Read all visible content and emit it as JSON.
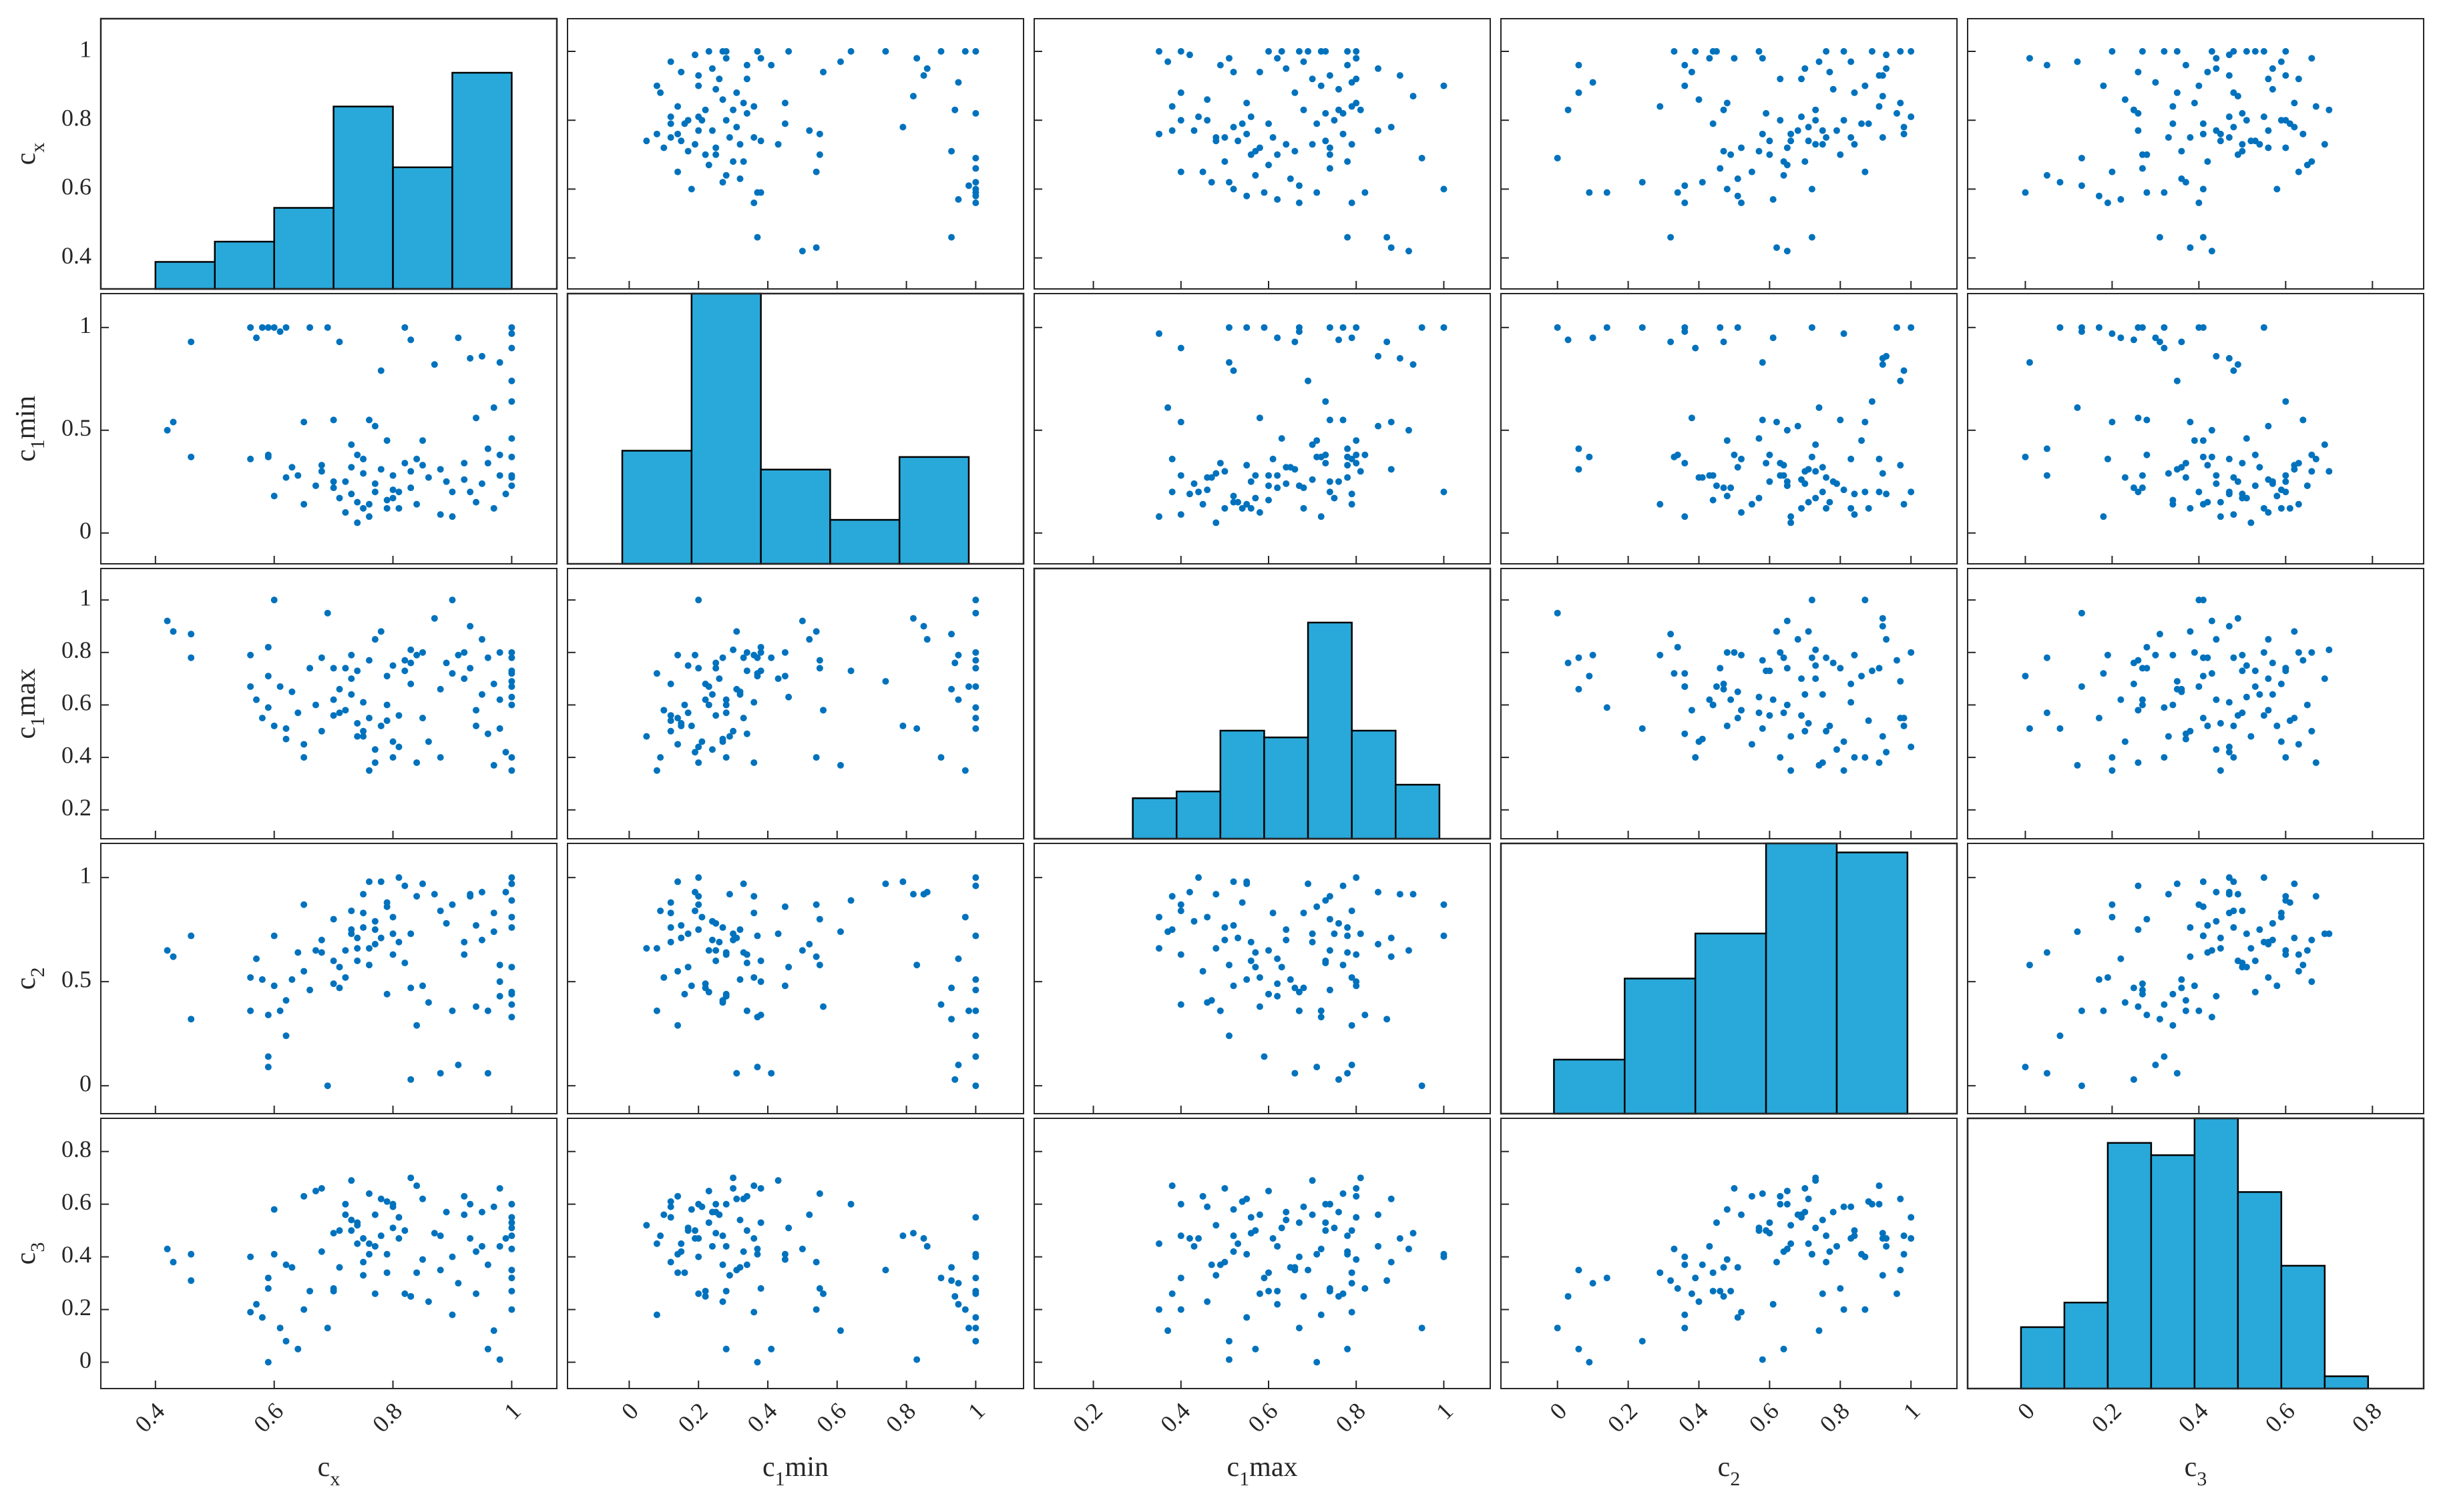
{
  "chart_data": {
    "type": "scatter_matrix",
    "color": "#0072bd",
    "hist_color": "#29a9d9",
    "variables": [
      {
        "label": [
          "c",
          "x"
        ],
        "xlim": [
          0.308,
          1.076
        ],
        "ylim": [
          0.31,
          1.095
        ],
        "xticks": [
          0.4,
          0.6,
          0.8,
          1
        ],
        "yticks": [
          0.4,
          0.6,
          0.8,
          1
        ],
        "values": [
          0.42,
          0.43,
          0.46,
          0.46,
          0.56,
          0.56,
          0.57,
          0.58,
          0.59,
          0.59,
          0.6,
          0.61,
          0.62,
          0.63,
          0.64,
          0.65,
          0.66,
          0.67,
          0.68,
          0.69,
          0.7,
          0.7,
          0.71,
          0.72,
          0.73,
          0.73,
          0.74,
          0.74,
          0.75,
          0.75,
          0.76,
          0.76,
          0.77,
          0.77,
          0.78,
          0.78,
          0.79,
          0.79,
          0.8,
          0.8,
          0.81,
          0.81,
          0.82,
          0.82,
          0.83,
          0.83,
          0.84,
          0.84,
          0.85,
          0.86,
          0.87,
          0.88,
          0.89,
          0.9,
          0.9,
          0.91,
          0.92,
          0.93,
          0.93,
          0.94,
          0.95,
          0.95,
          0.96,
          0.96,
          0.97,
          0.97,
          0.98,
          0.98,
          0.98,
          0.99,
          1.0,
          1.0,
          1.0,
          1.0,
          1.0,
          1.0,
          1.0,
          1.0,
          1.0,
          1.0,
          0.65,
          0.6,
          0.72,
          0.7,
          0.68,
          0.75,
          0.77,
          0.74,
          0.79,
          0.83,
          0.62,
          0.71,
          0.73,
          0.76,
          0.8,
          0.85,
          0.88,
          0.92,
          0.94,
          0.59
        ]
      },
      {
        "label": [
          "c",
          "1",
          "min"
        ],
        "xlim": [
          -0.178,
          1.138
        ],
        "ylim": [
          -0.15,
          1.165
        ],
        "xticks": [
          0,
          0.2,
          0.4,
          0.6,
          0.8,
          1
        ],
        "yticks": [
          0,
          0.5,
          1
        ],
        "values": [
          0.5,
          0.54,
          0.37,
          0.93,
          0.36,
          1.0,
          0.95,
          1.0,
          0.37,
          1.0,
          1.0,
          0.98,
          1.0,
          0.32,
          0.28,
          0.54,
          1.0,
          0.23,
          0.33,
          1.0,
          0.55,
          0.22,
          0.93,
          0.25,
          0.19,
          0.43,
          0.15,
          0.38,
          0.12,
          0.29,
          0.55,
          0.14,
          0.52,
          0.2,
          0.79,
          0.31,
          0.16,
          0.45,
          0.17,
          0.28,
          0.2,
          0.12,
          1.0,
          0.34,
          0.22,
          0.94,
          0.36,
          0.14,
          0.45,
          0.27,
          0.82,
          0.31,
          0.25,
          0.2,
          0.08,
          0.95,
          0.34,
          0.85,
          0.2,
          0.56,
          0.24,
          0.86,
          0.41,
          0.34,
          0.61,
          0.12,
          0.38,
          0.83,
          0.28,
          0.19,
          1.0,
          0.97,
          0.64,
          0.27,
          0.74,
          0.28,
          0.37,
          0.23,
          0.9,
          0.46,
          0.14,
          0.18,
          0.1,
          0.25,
          0.3,
          0.36,
          0.24,
          0.05,
          0.12,
          0.3,
          0.27,
          0.17,
          0.32,
          0.08,
          0.21,
          0.33,
          0.09,
          0.26,
          0.15,
          0.38
        ]
      },
      {
        "label": [
          "c",
          "1",
          "max"
        ],
        "xlim": [
          0.065,
          1.106
        ],
        "ylim": [
          0.09,
          1.12
        ],
        "xticks": [
          0.2,
          0.4,
          0.6,
          0.8,
          1
        ],
        "yticks": [
          0.2,
          0.4,
          0.6,
          0.8,
          1
        ],
        "values": [
          0.92,
          0.88,
          0.78,
          0.87,
          0.79,
          0.67,
          0.62,
          0.55,
          0.71,
          0.59,
          1.0,
          0.67,
          0.51,
          0.65,
          0.57,
          0.4,
          0.74,
          0.6,
          0.78,
          0.95,
          0.74,
          0.62,
          0.66,
          0.74,
          0.79,
          0.7,
          0.53,
          0.73,
          0.5,
          0.48,
          0.77,
          0.55,
          0.85,
          0.38,
          0.52,
          0.88,
          0.6,
          0.71,
          0.75,
          0.4,
          0.44,
          0.56,
          0.77,
          0.73,
          0.68,
          0.76,
          0.38,
          0.79,
          0.8,
          0.46,
          0.93,
          0.66,
          0.76,
          1.0,
          0.72,
          0.79,
          0.8,
          0.9,
          0.74,
          0.58,
          0.64,
          0.85,
          0.78,
          0.49,
          0.37,
          0.68,
          0.8,
          0.51,
          0.62,
          0.42,
          0.8,
          0.35,
          0.73,
          0.78,
          0.69,
          0.6,
          0.72,
          0.67,
          0.4,
          0.63,
          0.45,
          0.52,
          0.58,
          0.56,
          0.5,
          0.61,
          0.43,
          0.48,
          0.54,
          0.81,
          0.47,
          0.57,
          0.64,
          0.35,
          0.46,
          0.55,
          0.4,
          0.7,
          0.52,
          0.82
        ]
      },
      {
        "label": [
          "c",
          "2"
        ],
        "xlim": [
          -0.16,
          1.13
        ],
        "ylim": [
          -0.134,
          1.164
        ],
        "xticks": [
          0,
          0.2,
          0.4,
          0.6,
          0.8,
          1
        ],
        "yticks": [
          0,
          0.5,
          1
        ],
        "values": [
          0.65,
          0.62,
          0.72,
          0.32,
          0.52,
          0.36,
          0.61,
          0.51,
          0.09,
          0.14,
          0.72,
          0.36,
          0.24,
          0.51,
          0.64,
          0.87,
          0.46,
          0.65,
          0.64,
          0.0,
          0.8,
          0.49,
          0.47,
          0.65,
          0.84,
          0.73,
          0.71,
          0.6,
          0.76,
          0.92,
          0.58,
          0.98,
          0.68,
          0.75,
          0.98,
          0.71,
          0.44,
          0.86,
          0.73,
          0.63,
          1.0,
          0.69,
          0.96,
          0.59,
          0.47,
          0.03,
          0.91,
          0.29,
          0.48,
          0.4,
          0.92,
          0.06,
          0.78,
          0.87,
          0.36,
          0.1,
          0.63,
          0.92,
          0.91,
          0.38,
          0.7,
          0.93,
          0.06,
          0.36,
          0.74,
          0.83,
          0.5,
          0.58,
          0.43,
          0.93,
          1.0,
          0.81,
          0.89,
          0.76,
          0.97,
          0.44,
          0.33,
          0.45,
          0.39,
          0.57,
          0.55,
          0.48,
          0.52,
          0.6,
          0.7,
          0.83,
          0.79,
          0.66,
          0.88,
          0.73,
          0.41,
          0.57,
          0.75,
          0.66,
          0.81,
          0.97,
          0.84,
          0.69,
          0.77,
          0.34
        ]
      },
      {
        "label": [
          "c",
          "3"
        ],
        "xlim": [
          -0.133,
          0.918
        ],
        "ylim": [
          -0.1,
          0.926
        ],
        "xticks": [
          0,
          0.2,
          0.4,
          0.6,
          0.8
        ],
        "yticks": [
          0,
          0.2,
          0.4,
          0.6,
          0.8
        ],
        "values": [
          0.43,
          0.38,
          0.41,
          0.31,
          0.19,
          0.4,
          0.22,
          0.17,
          0.0,
          0.32,
          0.41,
          0.13,
          0.08,
          0.36,
          0.05,
          0.2,
          0.27,
          0.65,
          0.42,
          0.13,
          0.28,
          0.27,
          0.36,
          0.6,
          0.5,
          0.69,
          0.45,
          0.53,
          0.38,
          0.33,
          0.64,
          0.41,
          0.56,
          0.26,
          0.48,
          0.62,
          0.34,
          0.41,
          0.51,
          0.6,
          0.47,
          0.55,
          0.26,
          0.5,
          0.25,
          0.25,
          0.67,
          0.34,
          0.39,
          0.23,
          0.49,
          0.35,
          0.57,
          0.4,
          0.18,
          0.3,
          0.63,
          0.47,
          0.6,
          0.26,
          0.57,
          0.44,
          0.05,
          0.37,
          0.12,
          0.59,
          0.66,
          0.01,
          0.44,
          0.47,
          0.55,
          0.2,
          0.6,
          0.48,
          0.35,
          0.27,
          0.43,
          0.53,
          0.32,
          0.51,
          0.63,
          0.58,
          0.56,
          0.49,
          0.66,
          0.47,
          0.44,
          0.52,
          0.61,
          0.7,
          0.37,
          0.5,
          0.54,
          0.45,
          0.59,
          0.62,
          0.48,
          0.56,
          0.42,
          0.28
        ]
      }
    ],
    "histograms": [
      {
        "bins": [
          0.4,
          0.5,
          0.6,
          0.7,
          0.8,
          0.9,
          1.0
        ],
        "counts": [
          4,
          7,
          12,
          27,
          18,
          32
        ],
        "ylim": [
          0,
          40
        ]
      },
      {
        "bins": [
          -0.02,
          0.18,
          0.38,
          0.58,
          0.78,
          0.98
        ],
        "counts": [
          18,
          43,
          15,
          7,
          17
        ],
        "ylim": [
          0,
          43
        ]
      },
      {
        "bins": [
          0.29,
          0.39,
          0.49,
          0.59,
          0.69,
          0.79,
          0.89,
          0.99
        ],
        "counts": [
          6,
          7,
          16,
          15,
          32,
          16,
          8
        ],
        "ylim": [
          0,
          40
        ]
      },
      {
        "bins": [
          -0.01,
          0.19,
          0.39,
          0.59,
          0.79,
          0.99
        ],
        "counts": [
          6,
          15,
          20,
          30,
          29
        ],
        "ylim": [
          0,
          30
        ]
      },
      {
        "bins": [
          -0.01,
          0.09,
          0.19,
          0.29,
          0.39,
          0.49,
          0.59,
          0.69,
          0.79
        ],
        "counts": [
          5,
          7,
          20,
          19,
          22,
          16,
          10,
          1
        ],
        "ylim": [
          0,
          22
        ]
      }
    ]
  }
}
